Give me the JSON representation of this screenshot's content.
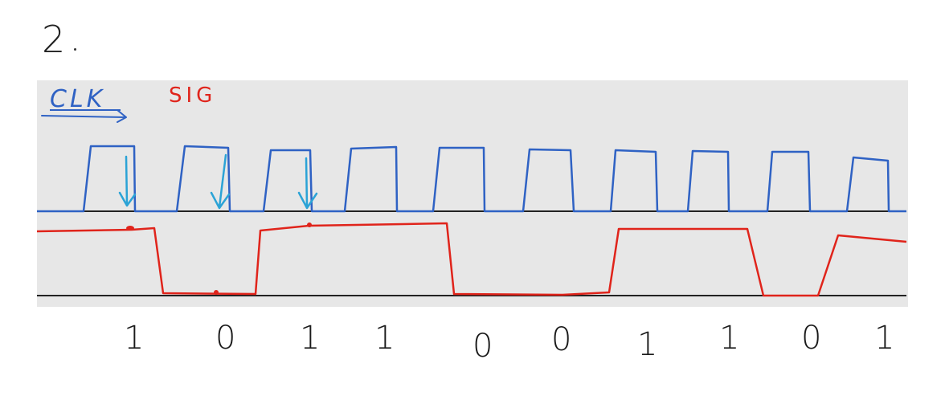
{
  "problem": {
    "label": "2",
    "dot": "."
  },
  "legend": {
    "clk_label": "CLK",
    "sig_label": "SIG",
    "clk_color": "#2f62c4",
    "sig_color": "#e0241b",
    "arrow_color": "#2ba3d6"
  },
  "panel_color": "#e7e7e7",
  "clock_pulses": 10,
  "bits": [
    "1",
    "0",
    "1",
    "1",
    "0",
    "0",
    "1",
    "1",
    "0",
    "1"
  ]
}
